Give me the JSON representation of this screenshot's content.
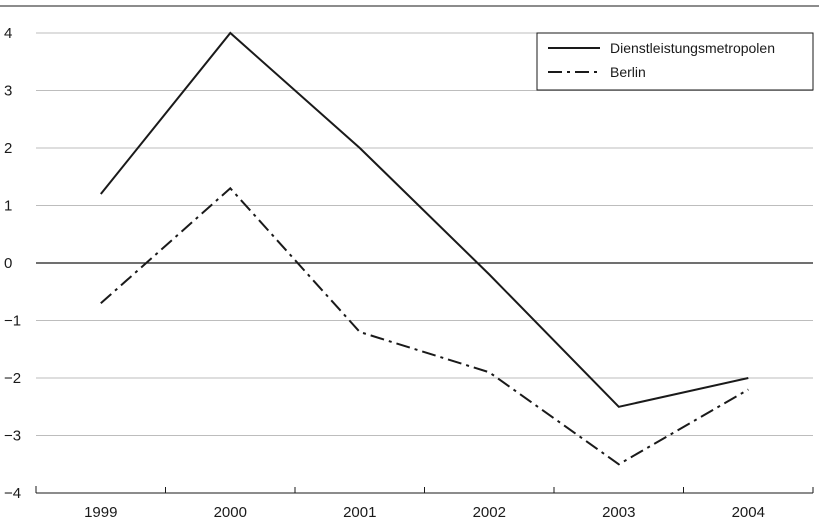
{
  "chart_data": {
    "type": "line",
    "title": "",
    "xlabel": "",
    "ylabel": "",
    "x": [
      "1999",
      "2000",
      "2001",
      "2002",
      "2003",
      "2004"
    ],
    "ylim": [
      -4,
      4
    ],
    "yticks": [
      "4",
      "3",
      "2",
      "1",
      "0",
      "−1",
      "−2",
      "−3",
      "−4"
    ],
    "ytick_values": [
      4,
      3,
      2,
      1,
      0,
      -1,
      -2,
      -3,
      -4
    ],
    "grid": true,
    "legend_position": "top-right",
    "series": [
      {
        "name": "Dienstleistungsmetropolen",
        "style": "solid",
        "color": "#1a1a1a",
        "values": [
          1.2,
          4.0,
          2.0,
          -0.2,
          -2.5,
          -2.0
        ]
      },
      {
        "name": "Berlin",
        "style": "dash-dot",
        "color": "#1a1a1a",
        "values": [
          -0.7,
          1.3,
          -1.2,
          -1.9,
          -3.5,
          -2.2
        ]
      }
    ]
  }
}
